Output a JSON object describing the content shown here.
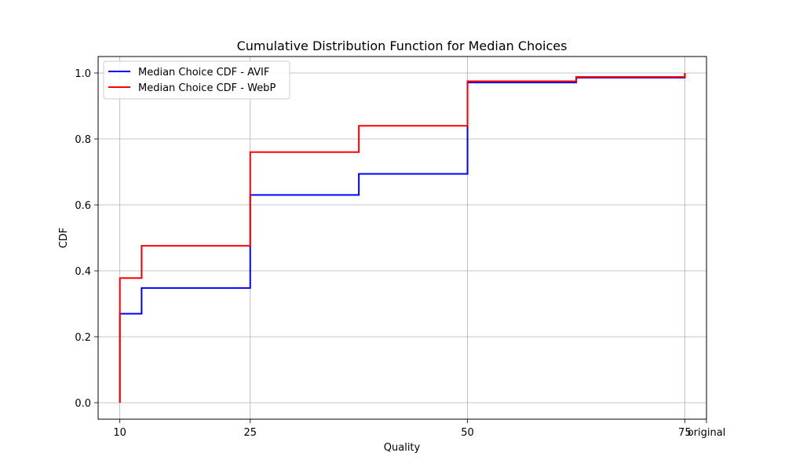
{
  "chart_data": {
    "type": "line",
    "step": "post",
    "title": "Cumulative Distribution Function for Median Choices",
    "xlabel": "Quality",
    "ylabel": "CDF",
    "xlim": [
      7.5,
      77.5
    ],
    "ylim": [
      -0.05,
      1.05
    ],
    "x_ticks": [
      {
        "value": 10,
        "label": "10"
      },
      {
        "value": 25,
        "label": "25"
      },
      {
        "value": 50,
        "label": "50"
      },
      {
        "value": 75,
        "label": "75"
      },
      {
        "value": 77.5,
        "label": "original"
      }
    ],
    "y_ticks": [
      {
        "value": 0.0,
        "label": "0.0"
      },
      {
        "value": 0.2,
        "label": "0.2"
      },
      {
        "value": 0.4,
        "label": "0.4"
      },
      {
        "value": 0.6,
        "label": "0.6"
      },
      {
        "value": 0.8,
        "label": "0.8"
      },
      {
        "value": 1.0,
        "label": "1.0"
      }
    ],
    "grid": true,
    "legend_position": "top-left",
    "series": [
      {
        "name": "Median Choice CDF - AVIF",
        "color": "#0000ff",
        "x": [
          10,
          10,
          12.5,
          12.5,
          25,
          25,
          37.5,
          37.5,
          50,
          50,
          62.5,
          62.5,
          75,
          75
        ],
        "y": [
          0.0,
          0.27,
          0.272,
          0.348,
          0.35,
          0.63,
          0.632,
          0.694,
          0.696,
          0.971,
          0.973,
          0.986,
          0.988,
          1.0
        ]
      },
      {
        "name": "Median Choice CDF - WebP",
        "color": "#ff0000",
        "x": [
          10,
          10,
          12.5,
          12.5,
          25,
          25,
          37.5,
          37.5,
          50,
          50,
          62.5,
          62.5,
          75,
          75
        ],
        "y": [
          0.0,
          0.378,
          0.38,
          0.476,
          0.478,
          0.76,
          0.762,
          0.84,
          0.842,
          0.975,
          0.977,
          0.988,
          0.99,
          1.0
        ]
      }
    ]
  }
}
